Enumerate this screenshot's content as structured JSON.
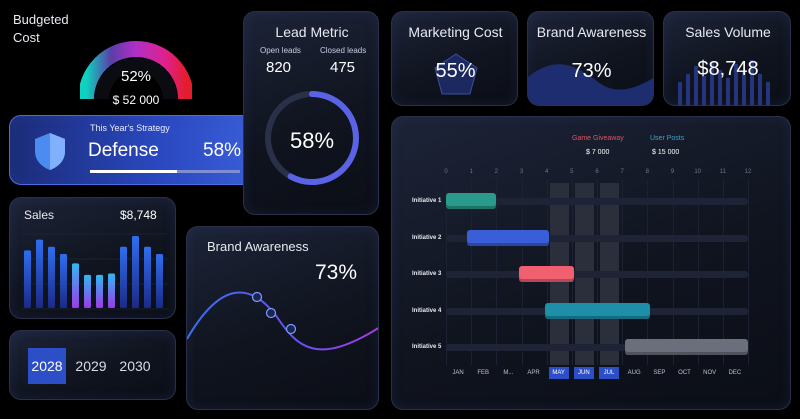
{
  "budget": {
    "title_line1": "Budgeted",
    "title_line2": "Cost",
    "percent": "52%",
    "amount": "$ 52 000",
    "gauge_value": 0.52
  },
  "strategy": {
    "caption": "This Year's Strategy",
    "name": "Defense",
    "percent": "58%",
    "progress": 0.58
  },
  "lead_metric": {
    "title": "Lead Metric",
    "open_label": "Open leads",
    "closed_label": "Closed leads",
    "open_value": "820",
    "closed_value": "475",
    "percent": "58%",
    "ring_value": 0.58
  },
  "marketing": {
    "title": "Marketing Cost",
    "percent": "55%"
  },
  "brand_small": {
    "title": "Brand Awareness",
    "percent": "73%"
  },
  "sales_volume": {
    "title": "Sales Volume",
    "value": "$8,748"
  },
  "sales": {
    "title": "Sales",
    "value": "$8,748",
    "bars": [
      0.8,
      0.95,
      0.85,
      0.75,
      0.62,
      0.46,
      0.46,
      0.48,
      0.85,
      1.0,
      0.85,
      0.75
    ]
  },
  "years": {
    "items": [
      "2028",
      "2029",
      "2030"
    ],
    "selected": "2028"
  },
  "brand_large": {
    "title": "Brand Awareness",
    "percent": "73%"
  },
  "gantt": {
    "legend": [
      {
        "label": "Game Giveaway",
        "value": "$ 7 000",
        "color": "#e0535f"
      },
      {
        "label": "User Posts",
        "value": "$ 15 000",
        "color": "#3aa6c8"
      }
    ],
    "numbers": [
      "0",
      "1",
      "2",
      "3",
      "4",
      "5",
      "6",
      "7",
      "8",
      "9",
      "10",
      "11",
      "12"
    ],
    "months": [
      "JAN",
      "FEB",
      "M...",
      "APR",
      "MAY",
      "JUN",
      "JUL",
      "AUG",
      "SEP",
      "OCT",
      "NOV",
      "DEC"
    ],
    "highlighted_months": [
      "MAY",
      "JUN",
      "JUL"
    ],
    "initiatives": [
      {
        "label": "Initiative 1",
        "start": 0,
        "end": 2,
        "color": "#2a9a8c"
      },
      {
        "label": "Initiative 2",
        "start": 0.85,
        "end": 4.1,
        "color": "#3a5ed8"
      },
      {
        "label": "Initiative 3",
        "start": 2.9,
        "end": 5.1,
        "color": "#f06070"
      },
      {
        "label": "Initiative 4",
        "start": 3.95,
        "end": 8.1,
        "color": "#1e8fa8"
      },
      {
        "label": "Initiative 5",
        "start": 7.1,
        "end": 12,
        "color": "#6b6f7c"
      }
    ]
  }
}
